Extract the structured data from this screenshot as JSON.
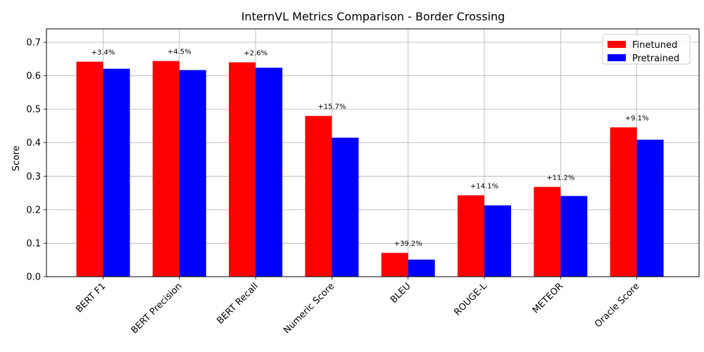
{
  "chart_data": {
    "type": "bar",
    "title": "InternVL Metrics Comparison - Border Crossing",
    "xlabel": "",
    "ylabel": "Score",
    "categories": [
      "BERT F1",
      "BERT Precision",
      "BERT Recall",
      "Numeric Score",
      "BLEU",
      "ROUGE-L",
      "METEOR",
      "Oracle Score"
    ],
    "series": [
      {
        "name": "Finetuned",
        "color": "#ff0000",
        "values": [
          0.642,
          0.644,
          0.64,
          0.48,
          0.071,
          0.243,
          0.268,
          0.446
        ]
      },
      {
        "name": "Pretrained",
        "color": "#0000ff",
        "values": [
          0.621,
          0.617,
          0.624,
          0.415,
          0.051,
          0.213,
          0.241,
          0.409
        ]
      }
    ],
    "annotations": [
      "+3.4%",
      "+4.5%",
      "+2.6%",
      "+15.7%",
      "+39.2%",
      "+14.1%",
      "+11.2%",
      "+9.1%"
    ],
    "ylim": [
      0,
      0.74
    ],
    "yticks": [
      "0.0",
      "0.1",
      "0.2",
      "0.3",
      "0.4",
      "0.5",
      "0.6",
      "0.7"
    ],
    "grid": true,
    "legend_position": "top-right"
  }
}
